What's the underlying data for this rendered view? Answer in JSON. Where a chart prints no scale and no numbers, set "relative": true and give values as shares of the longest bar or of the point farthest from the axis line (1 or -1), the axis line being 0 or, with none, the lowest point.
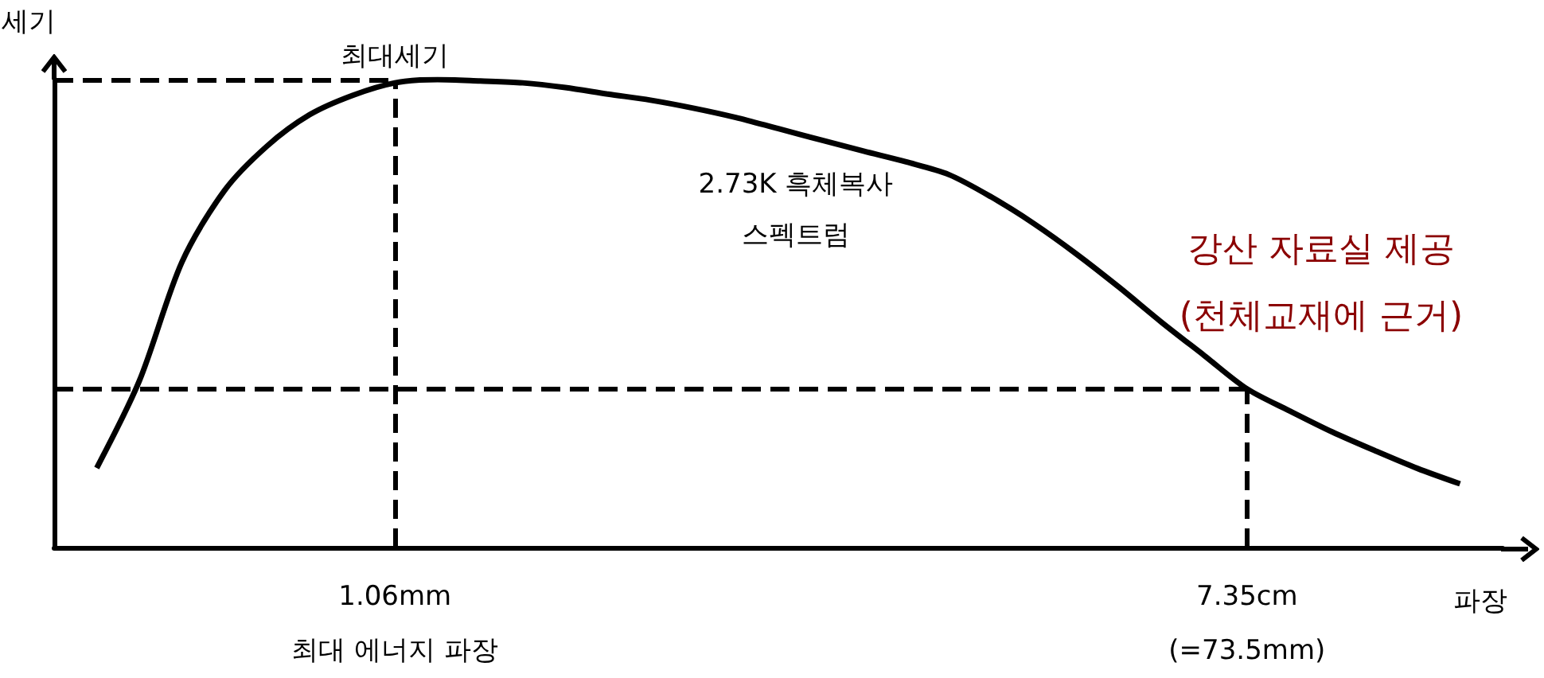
{
  "chart_data": {
    "type": "line",
    "relative": true,
    "xlabel": "파장",
    "ylabel": "세기",
    "categories": [
      null,
      null,
      null,
      null,
      null,
      null,
      null,
      null,
      "1.06mm\n최대 에너지 파장",
      null,
      null,
      null,
      null,
      null,
      null,
      null,
      null,
      null,
      null,
      null,
      null,
      null,
      null,
      null,
      null,
      null,
      null,
      null,
      "7.35cm\n(=73.5mm)",
      null,
      null,
      null,
      null,
      null,
      null
    ],
    "series": [
      {
        "color": "#000000",
        "values": [
          null,
          0.17,
          0.356,
          0.61,
          0.763,
          0.858,
          0.925,
          0.966,
          0.993,
          1.0,
          0.997,
          0.993,
          0.983,
          0.969,
          0.956,
          0.939,
          0.919,
          0.895,
          0.871,
          0.847,
          0.824,
          0.797,
          0.749,
          0.692,
          0.627,
          0.556,
          0.481,
          0.41,
          0.339,
          0.292,
          0.247,
          0.207,
          0.169,
          0.136,
          null
        ]
      }
    ],
    "ref_lines": [
      {
        "axis": "x",
        "value": "1.06mm\n최대 에너지 파장",
        "line_style": "dashed",
        "color": "#000000"
      },
      {
        "axis": "x",
        "value": "7.35cm\n(=73.5mm)",
        "line_style": "dashed",
        "color": "#000000"
      },
      {
        "axis": "y",
        "value": 1.0,
        "line_style": "dashed",
        "color": "#000000"
      },
      {
        "axis": "y",
        "value": 0.339,
        "line_style": "dashed",
        "color": "#000000"
      }
    ],
    "annotations": [
      {
        "text": "최대세기",
        "x": "1.06mm\n최대 에너지 파장",
        "y": 1.0
      },
      "2.73K 흑체복사\n스펙트럼",
      "강산 자료실 제공\n(천체교재에 근거)"
    ],
    "marker": "none",
    "grid": false
  }
}
